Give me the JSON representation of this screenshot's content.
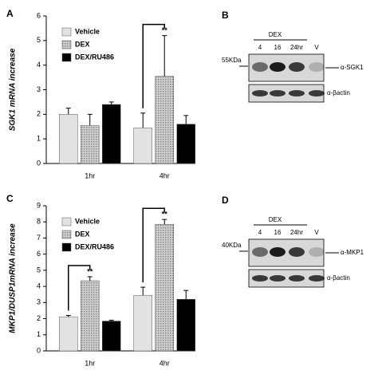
{
  "chart_data": [
    {
      "type": "bar",
      "panel": "A",
      "y_label": "SGK1 mRNA increase",
      "categories": [
        "1hr",
        "4hr"
      ],
      "series": [
        {
          "name": "Vehicle",
          "color": "#e2e2e2",
          "values": [
            2.0,
            1.45
          ],
          "errors": [
            0.25,
            0.6
          ]
        },
        {
          "name": "DEX",
          "color": "#b4b4b4",
          "values": [
            1.55,
            3.55
          ],
          "errors": [
            0.45,
            1.65
          ],
          "significance": [
            null,
            "**"
          ]
        },
        {
          "name": "DEX/RU486",
          "color": "#000000",
          "values": [
            2.4,
            1.6
          ],
          "errors": [
            0.1,
            0.35
          ]
        }
      ],
      "ylim": [
        0,
        6
      ],
      "yticks": [
        0,
        1,
        2,
        3,
        4,
        5,
        6
      ]
    },
    {
      "type": "bar",
      "panel": "C",
      "y_label": "MKP1/DUSP1mRNA increase",
      "categories": [
        "1hr",
        "4hr"
      ],
      "series": [
        {
          "name": "Vehicle",
          "color": "#e2e2e2",
          "values": [
            2.1,
            3.45
          ],
          "errors": [
            0.1,
            0.5
          ]
        },
        {
          "name": "DEX",
          "color": "#b4b4b4",
          "values": [
            4.35,
            7.85
          ],
          "errors": [
            0.25,
            0.3
          ],
          "significance": [
            "**",
            "**"
          ]
        },
        {
          "name": "DEX/RU486",
          "color": "#000000",
          "values": [
            1.85,
            3.2
          ],
          "errors": [
            0.05,
            0.55
          ]
        }
      ],
      "ylim": [
        0,
        9
      ],
      "yticks": [
        0,
        1,
        2,
        3,
        4,
        5,
        6,
        7,
        8,
        9
      ]
    }
  ],
  "blots": [
    {
      "panel": "B",
      "group": "DEX",
      "lanes": [
        "4",
        "16",
        "24hr",
        "V"
      ],
      "marker": "55KDa",
      "target": "α-SGK1",
      "control": "α-βactin"
    },
    {
      "panel": "D",
      "group": "DEX",
      "lanes": [
        "4",
        "16",
        "24hr",
        "V"
      ],
      "marker": "40KDa",
      "target": "α-MKP1",
      "control": "α-βactin"
    }
  ]
}
